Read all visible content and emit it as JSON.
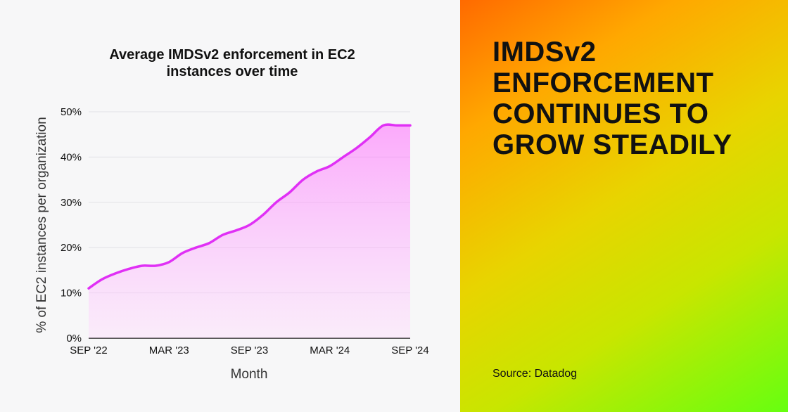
{
  "headline": "IMDSv2 ENFORCEMENT CONTINUES TO GROW STEADILY",
  "source": "Source: Datadog",
  "colors": {
    "line": "#e030f5",
    "fill": "#ff70ff",
    "headline_text": "#111111"
  },
  "chart_data": {
    "type": "area",
    "title": "Average IMDSv2 enforcement in EC2 instances over time",
    "xlabel": "Month",
    "ylabel": "% of EC2 instances per organization",
    "x_ticks": [
      "SEP '22",
      "MAR '23",
      "SEP '23",
      "MAR '24",
      "SEP '24"
    ],
    "y_ticks": [
      "0%",
      "10%",
      "20%",
      "30%",
      "40%",
      "50%"
    ],
    "ylim": [
      0,
      50
    ],
    "grid": true,
    "series": [
      {
        "x": [
          "2022-09",
          "2022-10",
          "2022-11",
          "2022-12",
          "2023-01",
          "2023-02",
          "2023-03",
          "2023-04",
          "2023-05",
          "2023-06",
          "2023-07",
          "2023-08",
          "2023-09",
          "2023-10",
          "2023-11",
          "2023-12",
          "2024-01",
          "2024-02",
          "2024-03",
          "2024-04",
          "2024-05",
          "2024-06",
          "2024-07",
          "2024-08",
          "2024-09"
        ],
        "values": [
          11,
          13,
          14.3,
          15.3,
          16,
          16,
          16.8,
          18.8,
          20,
          21,
          22.8,
          23.8,
          25,
          27.2,
          30,
          32.2,
          35,
          36.8,
          38,
          40,
          42,
          44.4,
          47,
          47,
          47
        ]
      }
    ]
  }
}
